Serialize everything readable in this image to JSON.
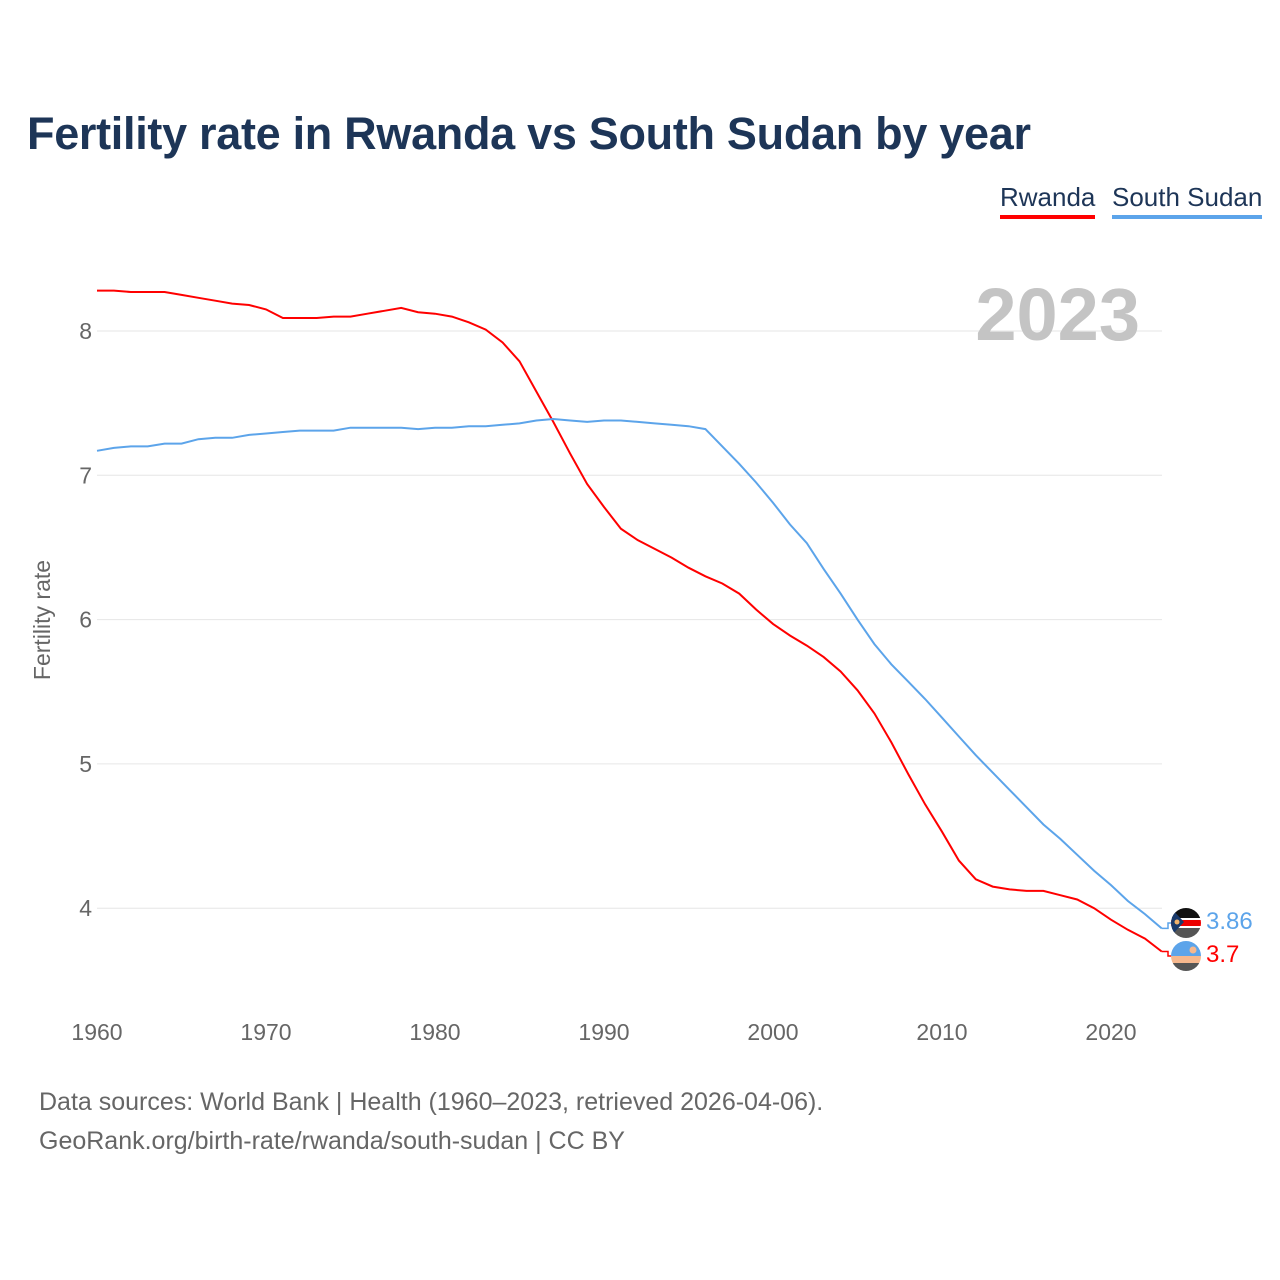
{
  "chart_data": {
    "type": "line",
    "title": "Fertility rate in Rwanda vs South Sudan by year",
    "xlabel": "",
    "ylabel": "Fertility rate",
    "xlim": [
      1960,
      2023
    ],
    "ylim": [
      3.5,
      8.5
    ],
    "x_ticks": [
      1960,
      1970,
      1980,
      1990,
      2000,
      2010,
      2020
    ],
    "y_ticks": [
      4,
      5,
      6,
      7,
      8
    ],
    "grid": true,
    "legend_position": "top-right",
    "year_label": "2023",
    "x": [
      1960,
      1961,
      1962,
      1963,
      1964,
      1965,
      1966,
      1967,
      1968,
      1969,
      1970,
      1971,
      1972,
      1973,
      1974,
      1975,
      1976,
      1977,
      1978,
      1979,
      1980,
      1981,
      1982,
      1983,
      1984,
      1985,
      1986,
      1987,
      1988,
      1989,
      1990,
      1991,
      1992,
      1993,
      1994,
      1995,
      1996,
      1997,
      1998,
      1999,
      2000,
      2001,
      2002,
      2003,
      2004,
      2005,
      2006,
      2007,
      2008,
      2009,
      2010,
      2011,
      2012,
      2013,
      2014,
      2015,
      2016,
      2017,
      2018,
      2019,
      2020,
      2021,
      2022,
      2023
    ],
    "series": [
      {
        "name": "Rwanda",
        "color": "#ff0000",
        "end_label": "3.7",
        "values": [
          8.28,
          8.28,
          8.27,
          8.27,
          8.27,
          8.25,
          8.23,
          8.21,
          8.19,
          8.18,
          8.15,
          8.09,
          8.09,
          8.09,
          8.1,
          8.1,
          8.12,
          8.14,
          8.16,
          8.13,
          8.12,
          8.1,
          8.06,
          8.01,
          7.92,
          7.79,
          7.58,
          7.37,
          7.15,
          6.94,
          6.78,
          6.63,
          6.55,
          6.49,
          6.43,
          6.36,
          6.3,
          6.25,
          6.18,
          6.07,
          5.97,
          5.89,
          5.82,
          5.74,
          5.64,
          5.51,
          5.35,
          5.15,
          4.93,
          4.72,
          4.53,
          4.33,
          4.2,
          4.15,
          4.13,
          4.12,
          4.12,
          4.09,
          4.06,
          4.0,
          3.92,
          3.85,
          3.79,
          3.7
        ]
      },
      {
        "name": "South Sudan",
        "color": "#5ca4ea",
        "end_label": "3.86",
        "values": [
          7.17,
          7.19,
          7.2,
          7.2,
          7.22,
          7.22,
          7.25,
          7.26,
          7.26,
          7.28,
          7.29,
          7.3,
          7.31,
          7.31,
          7.31,
          7.33,
          7.33,
          7.33,
          7.33,
          7.32,
          7.33,
          7.33,
          7.34,
          7.34,
          7.35,
          7.36,
          7.38,
          7.39,
          7.38,
          7.37,
          7.38,
          7.38,
          7.37,
          7.36,
          7.35,
          7.34,
          7.32,
          7.2,
          7.08,
          6.95,
          6.81,
          6.66,
          6.53,
          6.35,
          6.18,
          6.0,
          5.83,
          5.69,
          5.57,
          5.45,
          5.32,
          5.19,
          5.06,
          4.94,
          4.82,
          4.7,
          4.58,
          4.48,
          4.37,
          4.26,
          4.16,
          4.05,
          3.96,
          3.86
        ]
      }
    ]
  },
  "legend": {
    "rwanda": "Rwanda",
    "south_sudan": "South Sudan"
  },
  "footer": {
    "line1": "Data sources: World Bank | Health (1960–2023, retrieved 2026-04-06).",
    "line2": "GeoRank.org/birth-rate/rwanda/south-sudan | CC BY"
  }
}
